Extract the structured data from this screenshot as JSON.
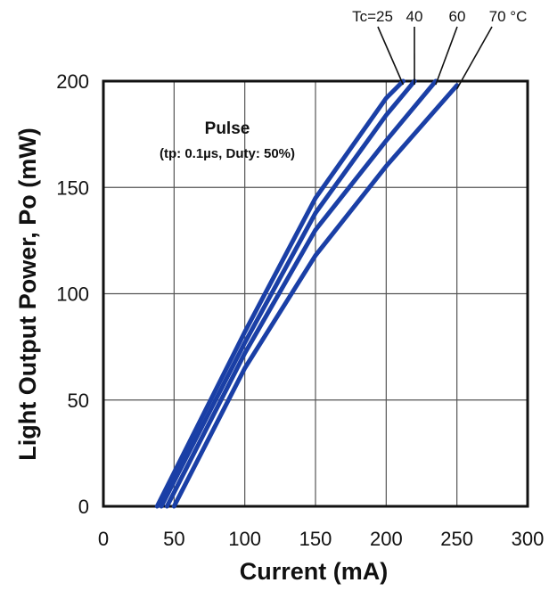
{
  "chart_data": {
    "type": "line",
    "xlabel": "Current (mA)",
    "ylabel": "Light Output Power, Po (mW)",
    "xlim": [
      0,
      300
    ],
    "ylim": [
      0,
      200
    ],
    "xticks": [
      "0",
      "50",
      "100",
      "150",
      "200",
      "250",
      "300"
    ],
    "yticks": [
      "0",
      "50",
      "100",
      "150",
      "200"
    ],
    "grid": true,
    "annotation": {
      "title": "Pulse",
      "subtitle": "(tp: 0.1µs, Duty: 50%)"
    },
    "series_labels": [
      "Tc=25",
      "40",
      "60",
      "70 °C"
    ],
    "series": [
      {
        "label_index": 0,
        "color": "#1a3fa6",
        "x": [
          38,
          100,
          150,
          200,
          212
        ],
        "y": [
          0,
          82,
          145,
          192,
          200
        ]
      },
      {
        "label_index": 1,
        "color": "#1a3fa6",
        "x": [
          41,
          100,
          150,
          200,
          220
        ],
        "y": [
          0,
          77,
          138,
          184,
          200
        ]
      },
      {
        "label_index": 2,
        "color": "#1a3fa6",
        "x": [
          45,
          100,
          150,
          200,
          235
        ],
        "y": [
          0,
          72,
          130,
          172,
          200
        ]
      },
      {
        "label_index": 3,
        "color": "#1a3fa6",
        "x": [
          50,
          100,
          150,
          200,
          250
        ],
        "y": [
          0,
          65,
          118,
          160,
          198
        ]
      }
    ]
  }
}
